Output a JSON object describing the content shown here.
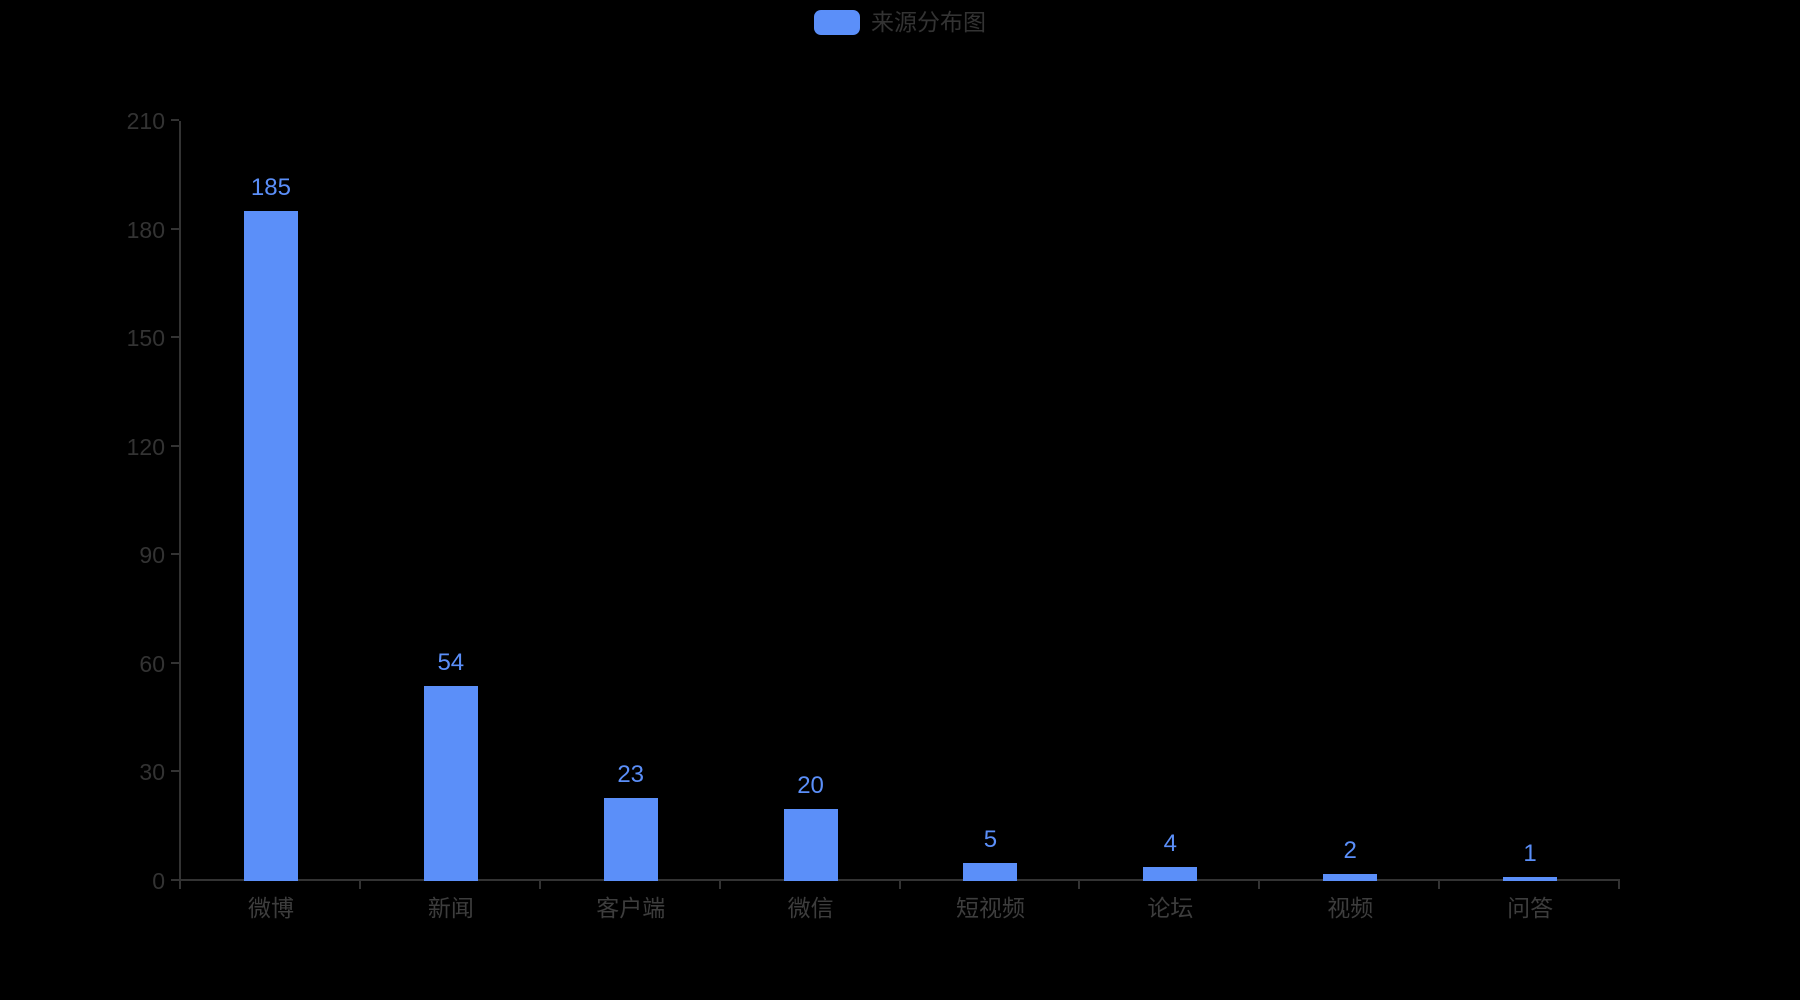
{
  "colors": {
    "background": "#000000",
    "bar": "#5B8FF9",
    "value_label": "#5B8FF9",
    "axis": "#333333",
    "axis_label": "#333333",
    "category_label": "#3d3d3d",
    "legend_text": "#333333"
  },
  "chart_data": {
    "type": "bar",
    "title": "来源分布图",
    "legend": [
      "来源分布图"
    ],
    "legend_position": "top-center",
    "categories": [
      "微博",
      "新闻",
      "客户端",
      "微信",
      "短视频",
      "论坛",
      "视频",
      "问答"
    ],
    "values": [
      185,
      54,
      23,
      20,
      5,
      4,
      2,
      1
    ],
    "y_ticks": [
      0,
      30,
      60,
      90,
      120,
      150,
      180,
      210
    ],
    "ylim": [
      0,
      210
    ],
    "xlabel": "",
    "ylabel": "",
    "grid": false
  }
}
